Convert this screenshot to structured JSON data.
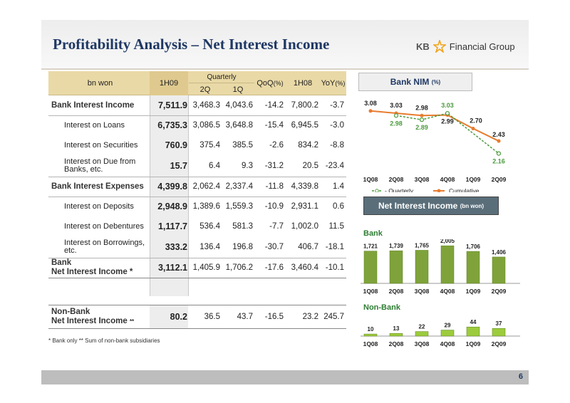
{
  "header": {
    "title": "Profitability Analysis – Net Interest Income",
    "logo_kb": "KB",
    "logo_text": "Financial Group"
  },
  "page_number": "6",
  "table": {
    "headers": {
      "bn_won": "bn won",
      "h109": "1H09",
      "quarterly": "Quarterly",
      "q2": "2Q",
      "q1": "1Q",
      "qoq": "QoQ",
      "qoq_unit": "(%)",
      "h108": "1H08",
      "yoy": "YoY",
      "yoy_unit": "(%)"
    },
    "rows": [
      {
        "label": "Bank Interest Income",
        "h109": "7,511.9",
        "q2": "3,468.3",
        "q1": "4,043.6",
        "qoq": "-14.2",
        "h108": "7,800.2",
        "yoy": "-3.7"
      },
      {
        "label": "Interest on Loans",
        "h109": "6,735.3",
        "q2": "3,086.5",
        "q1": "3,648.8",
        "qoq": "-15.4",
        "h108": "6,945.5",
        "yoy": "-3.0"
      },
      {
        "label": "Interest on Securities",
        "h109": "760.9",
        "q2": "375.4",
        "q1": "385.5",
        "qoq": "-2.6",
        "h108": "834.2",
        "yoy": "-8.8"
      },
      {
        "label": "Interest on Due from Banks, etc.",
        "h109": "15.7",
        "q2": "6.4",
        "q1": "9.3",
        "qoq": "-31.2",
        "h108": "20.5",
        "yoy": "-23.4"
      },
      {
        "label": "Bank Interest Expenses",
        "h109": "4,399.8",
        "q2": "2,062.4",
        "q1": "2,337.4",
        "qoq": "-11.8",
        "h108": "4,339.8",
        "yoy": "1.4"
      },
      {
        "label": "Interest on Deposits",
        "h109": "2,948.9",
        "q2": "1,389.6",
        "q1": "1,559.3",
        "qoq": "-10.9",
        "h108": "2,931.1",
        "yoy": "0.6"
      },
      {
        "label": "Interest on Debentures",
        "h109": "1,117.7",
        "q2": "536.4",
        "q1": "581.3",
        "qoq": "-7.7",
        "h108": "1,002.0",
        "yoy": "11.5"
      },
      {
        "label": "Interest on Borrowings, etc.",
        "h109": "333.2",
        "q2": "136.4",
        "q1": "196.8",
        "qoq": "-30.7",
        "h108": "406.7",
        "yoy": "-18.1"
      },
      {
        "label_line1": "Bank",
        "label_line2": "Net Interest Income *",
        "h109": "3,112.1",
        "q2": "1,405.9",
        "q1": "1,706.2",
        "qoq": "-17.6",
        "h108": "3,460.4",
        "yoy": "-10.1"
      }
    ],
    "nonbank": {
      "label_line1": "Non-Bank",
      "label_line2": "Net Interest Income",
      "marker": "**",
      "h109": "80.2",
      "q2": "36.5",
      "q1": "43.7",
      "qoq": "-16.5",
      "h108": "23.2",
      "yoy": "245.7"
    },
    "footnote": "* Bank only    ** Sum of non-bank subsidiaries"
  },
  "nim_panel": {
    "title": "Bank NIM",
    "unit": "(%)"
  },
  "nii_panel": {
    "title": "Net Interest Income",
    "unit": "(bn won)",
    "bank_label": "Bank",
    "nonbank_label": "Non-Bank"
  },
  "colors": {
    "title_blue": "#1f3864",
    "bar_green": "#7fa33a",
    "bar_green_light": "#9ccc3c",
    "quarterly_green": "#4a9a3c",
    "cumulative_orange": "#e87c2f"
  },
  "chart_data": [
    {
      "type": "line",
      "title": "Bank NIM",
      "categories": [
        "1Q08",
        "2Q08",
        "3Q08",
        "4Q08",
        "1Q09",
        "2Q09"
      ],
      "series": [
        {
          "name": "Quarterly",
          "values": [
            null,
            2.98,
            2.89,
            3.03,
            null,
            2.16
          ]
        },
        {
          "name": "Cumulative",
          "values": [
            3.08,
            3.03,
            2.98,
            2.99,
            2.7,
            2.43
          ]
        }
      ],
      "labels": {
        "Quarterly": [
          "",
          "2.98",
          "2.89",
          "3.03",
          "",
          "2.16"
        ],
        "Cumulative": [
          "3.08",
          "3.03",
          "2.98",
          "2.99",
          "2.70",
          "2.43"
        ]
      },
      "ylim": [
        2.0,
        3.2
      ]
    },
    {
      "type": "bar",
      "title": "Bank",
      "categories": [
        "1Q08",
        "2Q08",
        "3Q08",
        "4Q08",
        "1Q09",
        "2Q09"
      ],
      "values": [
        1721,
        1739,
        1765,
        2005,
        1706,
        1406
      ],
      "labels": [
        "1,721",
        "1,739",
        "1,765",
        "2,005",
        "1,706",
        "1,406"
      ],
      "ylim": [
        0,
        2200
      ]
    },
    {
      "type": "bar",
      "title": "Non-Bank",
      "categories": [
        "1Q08",
        "2Q08",
        "3Q08",
        "4Q08",
        "1Q09",
        "2Q09"
      ],
      "values": [
        10,
        13,
        22,
        29,
        44,
        37
      ],
      "labels": [
        "10",
        "13",
        "22",
        "29",
        "44",
        "37"
      ],
      "ylim": [
        0,
        110
      ]
    }
  ]
}
